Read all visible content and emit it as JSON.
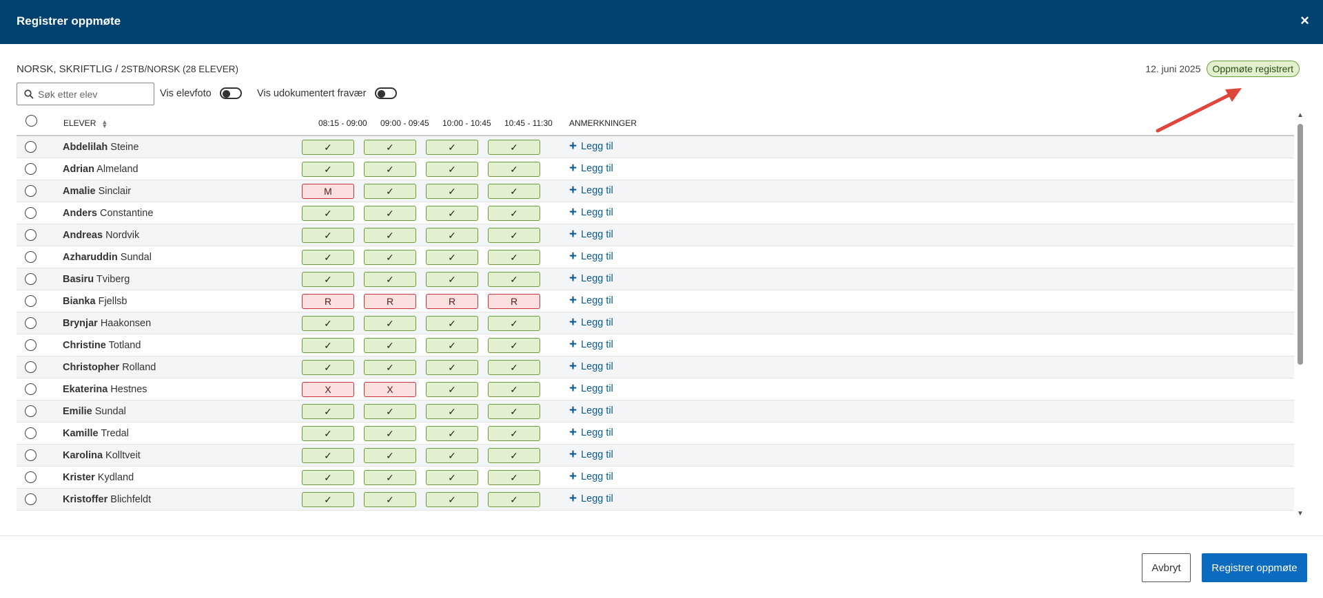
{
  "header": {
    "title": "Registrer oppmøte",
    "close_icon": "×"
  },
  "subheader": {
    "course": "NORSK, SKRIFTLIG / ",
    "group": "2STB/NORSK (28 ELEVER)"
  },
  "date": "12. juni 2025",
  "status_badge": "Oppmøte registrert",
  "search": {
    "placeholder": "Søk etter elev"
  },
  "toggles": {
    "photo_label": "Vis elevfoto",
    "undocumented_label": "Vis udokumentert fravær"
  },
  "columns": {
    "student": "ELEVER",
    "periods": [
      "08:15 - 09:00",
      "09:00 - 09:45",
      "10:00 - 10:45",
      "10:45 - 11:30"
    ],
    "remarks": "ANMERKNINGER"
  },
  "add_remark_label": "Legg til",
  "status_colors": {
    "present": "#e2f0cf",
    "absent": "#fbe0e0"
  },
  "students": [
    {
      "first": "Abdelilah",
      "last": "Steine",
      "att": [
        "✓",
        "✓",
        "✓",
        "✓"
      ]
    },
    {
      "first": "Adrian",
      "last": "Almeland",
      "att": [
        "✓",
        "✓",
        "✓",
        "✓"
      ]
    },
    {
      "first": "Amalie",
      "last": "Sinclair",
      "att": [
        "M",
        "✓",
        "✓",
        "✓"
      ]
    },
    {
      "first": "Anders",
      "last": "Constantine",
      "att": [
        "✓",
        "✓",
        "✓",
        "✓"
      ]
    },
    {
      "first": "Andreas",
      "last": "Nordvik",
      "att": [
        "✓",
        "✓",
        "✓",
        "✓"
      ]
    },
    {
      "first": "Azharuddin",
      "last": "Sundal",
      "att": [
        "✓",
        "✓",
        "✓",
        "✓"
      ]
    },
    {
      "first": "Basiru",
      "last": "Tviberg",
      "att": [
        "✓",
        "✓",
        "✓",
        "✓"
      ]
    },
    {
      "first": "Bianka",
      "last": "Fjellsb",
      "att": [
        "R",
        "R",
        "R",
        "R"
      ]
    },
    {
      "first": "Brynjar",
      "last": "Haakonsen",
      "att": [
        "✓",
        "✓",
        "✓",
        "✓"
      ]
    },
    {
      "first": "Christine",
      "last": "Totland",
      "att": [
        "✓",
        "✓",
        "✓",
        "✓"
      ]
    },
    {
      "first": "Christopher",
      "last": "Rolland",
      "att": [
        "✓",
        "✓",
        "✓",
        "✓"
      ]
    },
    {
      "first": "Ekaterina",
      "last": "Hestnes",
      "att": [
        "X",
        "X",
        "✓",
        "✓"
      ]
    },
    {
      "first": "Emilie",
      "last": "Sundal",
      "att": [
        "✓",
        "✓",
        "✓",
        "✓"
      ]
    },
    {
      "first": "Kamille",
      "last": "Tredal",
      "att": [
        "✓",
        "✓",
        "✓",
        "✓"
      ]
    },
    {
      "first": "Karolina",
      "last": "Kolltveit",
      "att": [
        "✓",
        "✓",
        "✓",
        "✓"
      ]
    },
    {
      "first": "Krister",
      "last": "Kydland",
      "att": [
        "✓",
        "✓",
        "✓",
        "✓"
      ]
    },
    {
      "first": "Kristoffer",
      "last": "Blichfeldt",
      "att": [
        "✓",
        "✓",
        "✓",
        "✓"
      ]
    }
  ],
  "footer": {
    "cancel_label": "Avbryt",
    "submit_label": "Registrer oppmøte"
  }
}
